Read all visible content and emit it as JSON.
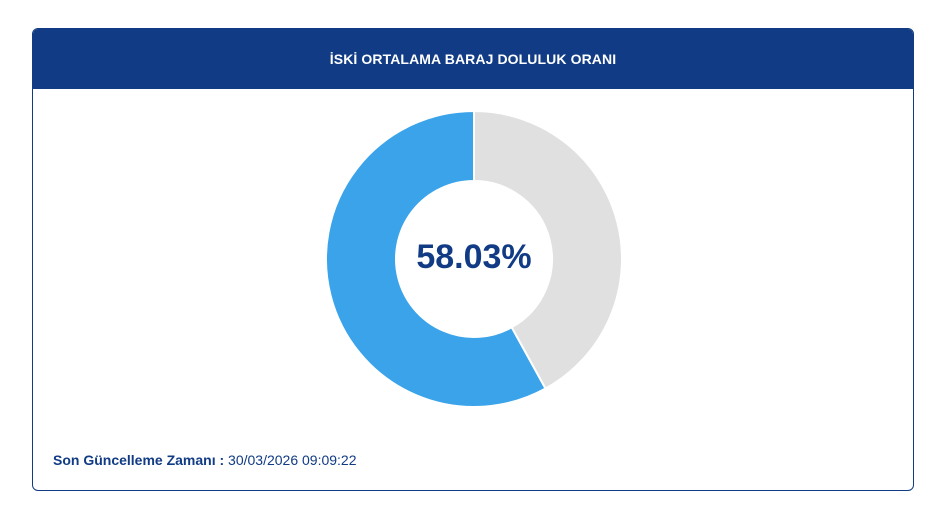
{
  "header": {
    "title": "İSKİ ORTALAMA BARAJ DOLULUK ORANI"
  },
  "chart_data": {
    "type": "pie",
    "variant": "donut",
    "center_label": "58.03%",
    "slices": [
      {
        "value": 58.03,
        "color": "#3aa3ea"
      },
      {
        "value": 41.97,
        "color": "#e0e0e0"
      }
    ]
  },
  "footer": {
    "label": "Son Güncelleme Zamanı :",
    "timestamp": "30/03/2026 09:09:22"
  },
  "colors": {
    "brand": "#113b84",
    "filled": "#3aa3ea",
    "empty": "#e0e0e0"
  }
}
